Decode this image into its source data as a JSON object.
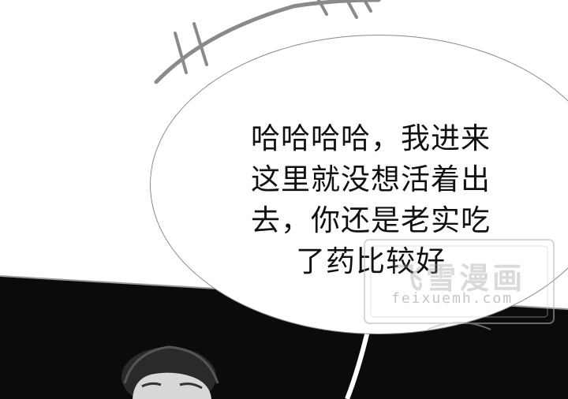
{
  "speech_bubble": {
    "lines": [
      "哈哈哈哈，我进来",
      "这里就没想活着出",
      "去，你还是老实吃",
      "了药比较好"
    ]
  },
  "watermark": {
    "logo_text": "飞雪漫画",
    "site": "feixuemh.com"
  },
  "colors": {
    "panel_dark": "#0b0b0b",
    "stroke_gray": "#8a8a8a",
    "text": "#111111"
  }
}
